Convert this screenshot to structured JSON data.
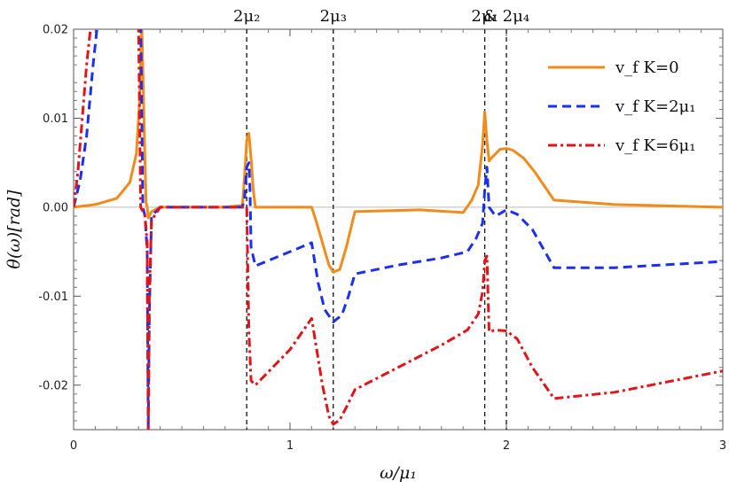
{
  "chart_data": {
    "type": "line",
    "title": "",
    "xlabel": "ω/μ₁",
    "ylabel": "θ(ω)[rad]",
    "xlim": [
      0,
      3
    ],
    "ylim": [
      -0.025,
      0.02
    ],
    "xticks": [
      0,
      1,
      2,
      3
    ],
    "xtick_labels": [
      "0",
      "1",
      "2",
      "3"
    ],
    "yticks": [
      -0.02,
      -0.01,
      0.0,
      0.01,
      0.02
    ],
    "ytick_labels": [
      "-0.02",
      "-0.01",
      "0.00",
      "0.01",
      "0.02"
    ],
    "grid": false,
    "legend_position": "top-right",
    "zero_line": true,
    "vlines": [
      {
        "x": 0.8,
        "label": "2μ₂"
      },
      {
        "x": 1.2,
        "label": "2μ₃"
      },
      {
        "x": 1.9,
        "label": "2μ₁"
      },
      {
        "x": 2.0,
        "label": "& 2μ₄"
      }
    ],
    "series": [
      {
        "name": "v_f K=0",
        "color": "#f08b1c",
        "dash": "solid",
        "x": [
          0,
          0.1,
          0.2,
          0.26,
          0.29,
          0.305,
          0.315,
          0.33,
          0.335,
          0.34,
          0.345,
          0.36,
          0.4,
          0.5,
          0.6,
          0.7,
          0.78,
          0.79,
          0.8,
          0.81,
          0.82,
          0.83,
          0.84,
          1.1,
          1.12,
          1.15,
          1.18,
          1.2,
          1.23,
          1.26,
          1.3,
          1.6,
          1.8,
          1.84,
          1.87,
          1.89,
          1.9,
          1.91,
          1.92,
          1.93,
          1.95,
          1.97,
          2.0,
          2.03,
          2.08,
          2.13,
          2.22,
          2.5,
          3.0
        ],
        "y": [
          0.0,
          0.0003,
          0.001,
          0.0028,
          0.006,
          0.012,
          0.0205,
          0.005,
          0.0005,
          0.0,
          -0.0012,
          -0.0005,
          0.0,
          0.0,
          0.0,
          0.0,
          0.0002,
          0.0035,
          0.0075,
          0.0083,
          0.0055,
          0.002,
          0.0,
          0.0,
          -0.0015,
          -0.004,
          -0.0065,
          -0.0073,
          -0.007,
          -0.0045,
          -0.0005,
          -0.0003,
          -0.0006,
          0.0008,
          0.0025,
          0.007,
          0.0107,
          0.0075,
          0.0052,
          0.0055,
          0.006,
          0.0065,
          0.0066,
          0.0064,
          0.0055,
          0.004,
          0.0008,
          0.0003,
          0.0
        ]
      },
      {
        "name": "v_f K=2μ₁",
        "color": "#1a2ff0",
        "dash": "dashed",
        "x": [
          0,
          0.03,
          0.06,
          0.09,
          0.11,
          0.31,
          0.32,
          0.33,
          0.34,
          0.345,
          0.35,
          0.36,
          0.4,
          0.5,
          0.6,
          0.7,
          0.78,
          0.79,
          0.8,
          0.81,
          0.815,
          0.82,
          0.84,
          0.9,
          1.0,
          1.1,
          1.13,
          1.16,
          1.2,
          1.24,
          1.27,
          1.3,
          1.5,
          1.7,
          1.82,
          1.86,
          1.89,
          1.9,
          1.91,
          1.92,
          1.95,
          2.0,
          2.05,
          2.12,
          2.22,
          2.5,
          3.0
        ],
        "y": [
          0.0,
          0.003,
          0.008,
          0.016,
          0.0205,
          0.0205,
          0.0,
          -0.001,
          -0.005,
          -0.025,
          -0.012,
          -0.001,
          0.0,
          0.0,
          0.0,
          0.0,
          0.0,
          0.001,
          0.0045,
          0.005,
          0.002,
          -0.0045,
          -0.0066,
          -0.006,
          -0.005,
          -0.004,
          -0.0085,
          -0.0115,
          -0.0129,
          -0.0121,
          -0.01,
          -0.0075,
          -0.0065,
          -0.0057,
          -0.005,
          -0.0035,
          -0.0018,
          0.002,
          0.0045,
          0.0,
          -0.001,
          -0.0003,
          -0.0008,
          -0.0025,
          -0.0068,
          -0.0068,
          -0.0061
        ]
      },
      {
        "name": "v_f K=6μ₁",
        "color": "#e0141a",
        "dash": "dashdot",
        "x": [
          0,
          0.02,
          0.04,
          0.06,
          0.08,
          0.3,
          0.31,
          0.33,
          0.34,
          0.345,
          0.35,
          0.36,
          0.4,
          0.5,
          0.6,
          0.7,
          0.78,
          0.8,
          0.805,
          0.81,
          0.82,
          0.84,
          0.9,
          1.0,
          1.1,
          1.12,
          1.15,
          1.18,
          1.2,
          1.23,
          1.26,
          1.3,
          1.5,
          1.7,
          1.82,
          1.87,
          1.89,
          1.9,
          1.91,
          1.92,
          1.95,
          2.0,
          2.05,
          2.12,
          2.22,
          2.5,
          3.0
        ],
        "y": [
          0.0,
          0.004,
          0.01,
          0.016,
          0.0205,
          0.0205,
          0.0,
          -0.001,
          -0.004,
          -0.025,
          -0.01,
          -0.0015,
          0.0,
          0.0,
          0.0,
          0.0,
          0.0,
          0.0,
          -0.007,
          -0.014,
          -0.0195,
          -0.02,
          -0.0185,
          -0.016,
          -0.0125,
          -0.0155,
          -0.02,
          -0.0235,
          -0.0244,
          -0.0239,
          -0.0225,
          -0.0205,
          -0.018,
          -0.0155,
          -0.0138,
          -0.012,
          -0.0095,
          -0.006,
          -0.0055,
          -0.014,
          -0.0138,
          -0.0139,
          -0.0148,
          -0.018,
          -0.0215,
          -0.0208,
          -0.0184
        ]
      }
    ]
  }
}
